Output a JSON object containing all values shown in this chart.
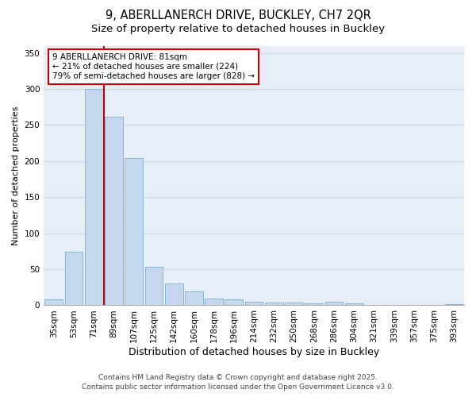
{
  "title_line1": "9, ABERLLANERCH DRIVE, BUCKLEY, CH7 2QR",
  "title_line2": "Size of property relative to detached houses in Buckley",
  "xlabel": "Distribution of detached houses by size in Buckley",
  "ylabel": "Number of detached properties",
  "categories": [
    "35sqm",
    "53sqm",
    "71sqm",
    "89sqm",
    "107sqm",
    "125sqm",
    "142sqm",
    "160sqm",
    "178sqm",
    "196sqm",
    "214sqm",
    "232sqm",
    "250sqm",
    "268sqm",
    "286sqm",
    "304sqm",
    "321sqm",
    "339sqm",
    "357sqm",
    "375sqm",
    "393sqm"
  ],
  "values": [
    8,
    74,
    300,
    261,
    204,
    53,
    30,
    19,
    9,
    8,
    5,
    4,
    4,
    3,
    5,
    3,
    0,
    0,
    0,
    0,
    2
  ],
  "bar_color": "#c5d8f0",
  "bar_edge_color": "#7bafd4",
  "vline_color": "#cc0000",
  "annotation_text": "9 ABERLLANERCH DRIVE: 81sqm\n← 21% of detached houses are smaller (224)\n79% of semi-detached houses are larger (828) →",
  "annotation_box_color": "#ffffff",
  "annotation_box_edge": "#cc0000",
  "ylim": [
    0,
    360
  ],
  "yticks": [
    0,
    50,
    100,
    150,
    200,
    250,
    300,
    350
  ],
  "grid_color": "#d0d8e8",
  "background_color": "#e8eef8",
  "footer_line1": "Contains HM Land Registry data © Crown copyright and database right 2025.",
  "footer_line2": "Contains public sector information licensed under the Open Government Licence v3.0.",
  "title_fontsize": 10.5,
  "subtitle_fontsize": 9.5,
  "tick_fontsize": 7.5,
  "xlabel_fontsize": 9,
  "ylabel_fontsize": 8,
  "footer_fontsize": 6.5,
  "annotation_fontsize": 7.5
}
